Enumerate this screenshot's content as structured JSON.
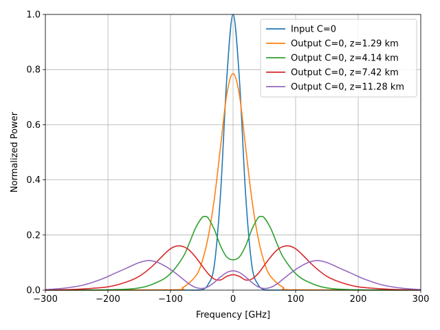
{
  "chart_data": {
    "type": "line",
    "title": "",
    "xlabel": "Frequency [GHz]",
    "ylabel": "Normalized Power",
    "xlim": [
      -300,
      300
    ],
    "ylim": [
      0,
      1.0
    ],
    "xticks": [
      -300,
      -200,
      -100,
      0,
      100,
      200,
      300
    ],
    "yticks": [
      0.0,
      0.2,
      0.4,
      0.6,
      0.8,
      1.0
    ],
    "xtick_labels": [
      "−300",
      "−200",
      "−100",
      "0",
      "100",
      "200",
      "300"
    ],
    "ytick_labels": [
      "0.0",
      "0.2",
      "0.4",
      "0.6",
      "0.8",
      "1.0"
    ],
    "grid": true,
    "legend_position": "top-right",
    "series": [
      {
        "name": "Input C=0",
        "color": "#1f77b4",
        "x": [
          -300,
          -100,
          -60,
          -50,
          -40,
          -30,
          -20,
          -10,
          0,
          10,
          20,
          30,
          40,
          50,
          60,
          100,
          300
        ],
        "y": [
          0,
          0,
          0.0,
          0.001,
          0.02,
          0.09,
          0.35,
          0.77,
          1.0,
          0.77,
          0.35,
          0.09,
          0.02,
          0.001,
          0.0,
          0,
          0
        ]
      },
      {
        "name": "Output C=0, z=1.29 km",
        "color": "#ff7f0e",
        "x": [
          -300,
          -100,
          -80,
          -60,
          -50,
          -40,
          -30,
          -20,
          -10,
          0,
          10,
          20,
          30,
          40,
          50,
          60,
          80,
          100,
          300
        ],
        "y": [
          0,
          0.001,
          0.01,
          0.05,
          0.1,
          0.19,
          0.33,
          0.52,
          0.71,
          0.785,
          0.71,
          0.52,
          0.33,
          0.19,
          0.1,
          0.05,
          0.01,
          0.001,
          0
        ]
      },
      {
        "name": "Output C=0, z=4.14 km",
        "color": "#2ca02c",
        "x": [
          -300,
          -200,
          -150,
          -120,
          -100,
          -80,
          -70,
          -60,
          -50,
          -45,
          -40,
          -30,
          -20,
          -10,
          0,
          10,
          20,
          30,
          40,
          45,
          50,
          60,
          70,
          80,
          100,
          120,
          150,
          200,
          300
        ],
        "y": [
          0,
          0.001,
          0.008,
          0.03,
          0.06,
          0.12,
          0.17,
          0.225,
          0.262,
          0.267,
          0.262,
          0.22,
          0.16,
          0.12,
          0.11,
          0.12,
          0.16,
          0.22,
          0.262,
          0.267,
          0.262,
          0.225,
          0.17,
          0.12,
          0.06,
          0.03,
          0.008,
          0.001,
          0
        ]
      },
      {
        "name": "Output C=0, z=7.42 km",
        "color": "#d62728",
        "x": [
          -300,
          -250,
          -200,
          -170,
          -150,
          -130,
          -110,
          -100,
          -90,
          -80,
          -70,
          -60,
          -50,
          -40,
          -30,
          -20,
          -10,
          0,
          10,
          20,
          30,
          40,
          50,
          60,
          70,
          80,
          90,
          100,
          110,
          130,
          150,
          170,
          200,
          250,
          300
        ],
        "y": [
          0,
          0.003,
          0.012,
          0.03,
          0.05,
          0.085,
          0.13,
          0.15,
          0.16,
          0.158,
          0.145,
          0.12,
          0.09,
          0.06,
          0.04,
          0.037,
          0.05,
          0.056,
          0.05,
          0.037,
          0.04,
          0.06,
          0.09,
          0.12,
          0.145,
          0.158,
          0.16,
          0.15,
          0.13,
          0.085,
          0.05,
          0.03,
          0.012,
          0.003,
          0
        ]
      },
      {
        "name": "Output C=0, z=11.28 km",
        "color": "#9467bd",
        "x": [
          -300,
          -270,
          -240,
          -210,
          -190,
          -170,
          -150,
          -135,
          -120,
          -100,
          -80,
          -70,
          -60,
          -50,
          -40,
          -30,
          -20,
          -10,
          0,
          10,
          20,
          30,
          40,
          50,
          60,
          70,
          80,
          100,
          120,
          135,
          150,
          170,
          190,
          210,
          240,
          270,
          300
        ],
        "y": [
          0.002,
          0.007,
          0.018,
          0.04,
          0.06,
          0.08,
          0.1,
          0.107,
          0.1,
          0.075,
          0.04,
          0.022,
          0.01,
          0.006,
          0.012,
          0.028,
          0.048,
          0.064,
          0.07,
          0.064,
          0.048,
          0.028,
          0.012,
          0.006,
          0.01,
          0.022,
          0.04,
          0.075,
          0.1,
          0.107,
          0.1,
          0.08,
          0.06,
          0.04,
          0.018,
          0.007,
          0.002
        ]
      }
    ]
  }
}
